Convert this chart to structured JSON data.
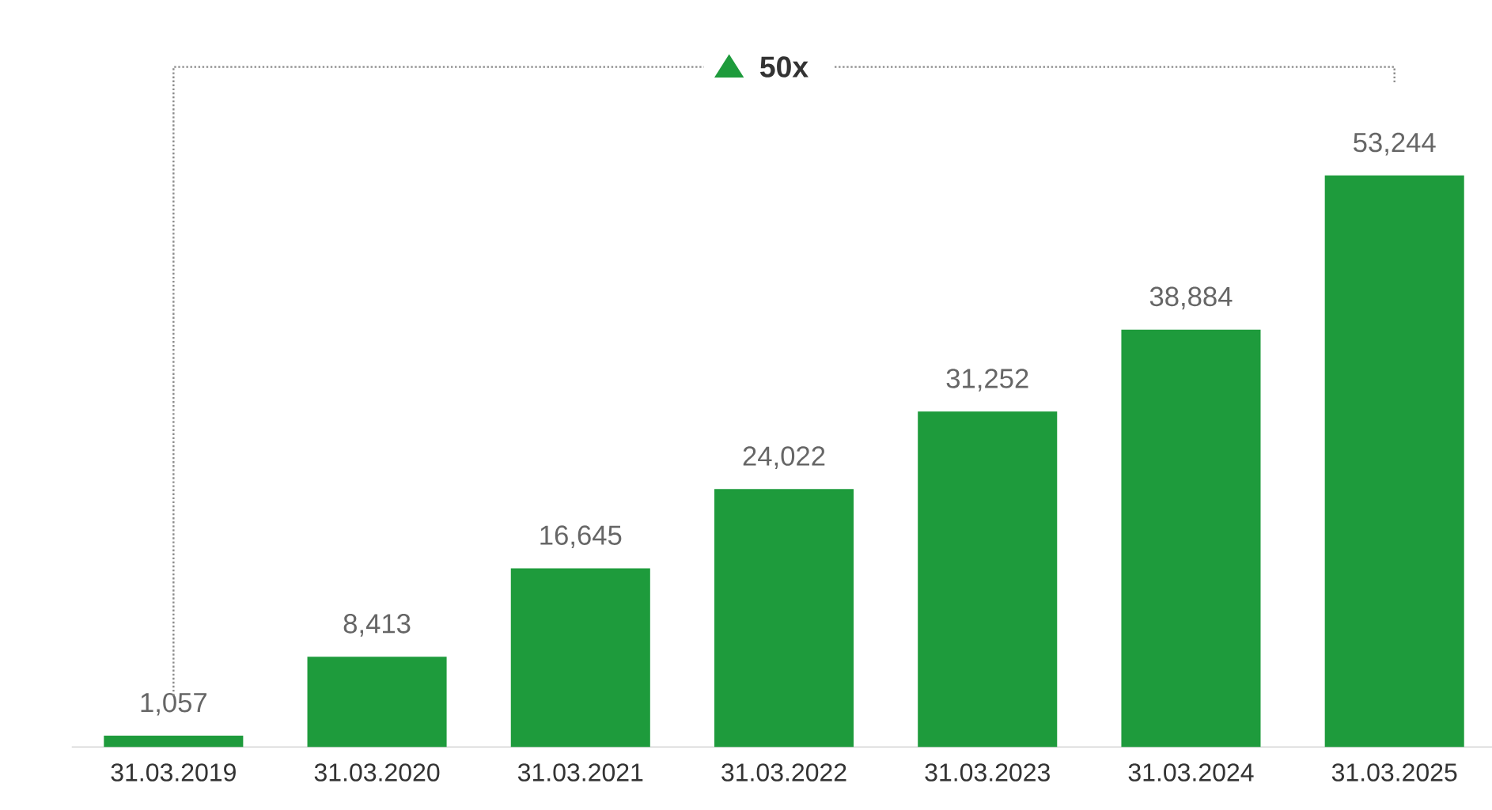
{
  "chart_data": {
    "type": "bar",
    "categories": [
      "31.03.2019",
      "31.03.2020",
      "31.03.2021",
      "31.03.2022",
      "31.03.2023",
      "31.03.2024",
      "31.03.2025"
    ],
    "values": [
      1057,
      8413,
      16645,
      24022,
      31252,
      38884,
      53244
    ],
    "value_labels": [
      "1,057",
      "8,413",
      "16,645",
      "24,022",
      "31,252",
      "38,884",
      "53,244"
    ],
    "color": "#1e9b3c",
    "annotations": [
      "50x"
    ]
  }
}
